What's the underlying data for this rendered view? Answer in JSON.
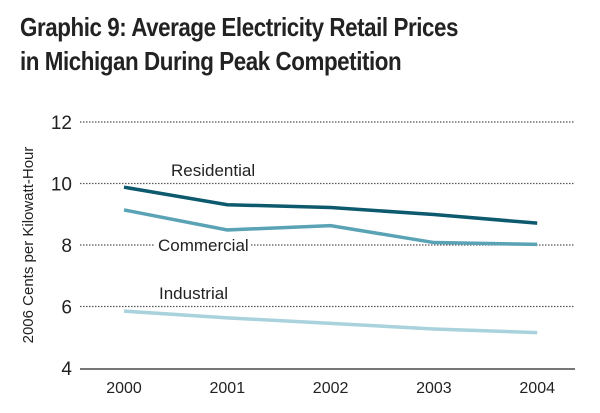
{
  "chart_data": {
    "type": "line",
    "title": "Graphic 9: Average Electricity Retail Prices",
    "title_line2": "in Michigan During Peak Competition",
    "xlabel": "",
    "ylabel": "2006 Cents per Kilowatt-Hour",
    "x": [
      "2000",
      "2001",
      "2002",
      "2003",
      "2004"
    ],
    "ylim": [
      4,
      12
    ],
    "yticks": [
      "4",
      "6",
      "8",
      "10",
      "12"
    ],
    "grid": true,
    "series": [
      {
        "name": "Residential",
        "values": [
          9.88,
          9.31,
          9.22,
          8.99,
          8.71
        ],
        "color": "#0d5a6e"
      },
      {
        "name": "Commercial",
        "values": [
          9.14,
          8.49,
          8.63,
          8.08,
          8.02
        ],
        "color": "#5aa3b5"
      },
      {
        "name": "Industrial",
        "values": [
          5.85,
          5.63,
          5.45,
          5.27,
          5.15
        ],
        "color": "#a9d2dc"
      }
    ]
  }
}
